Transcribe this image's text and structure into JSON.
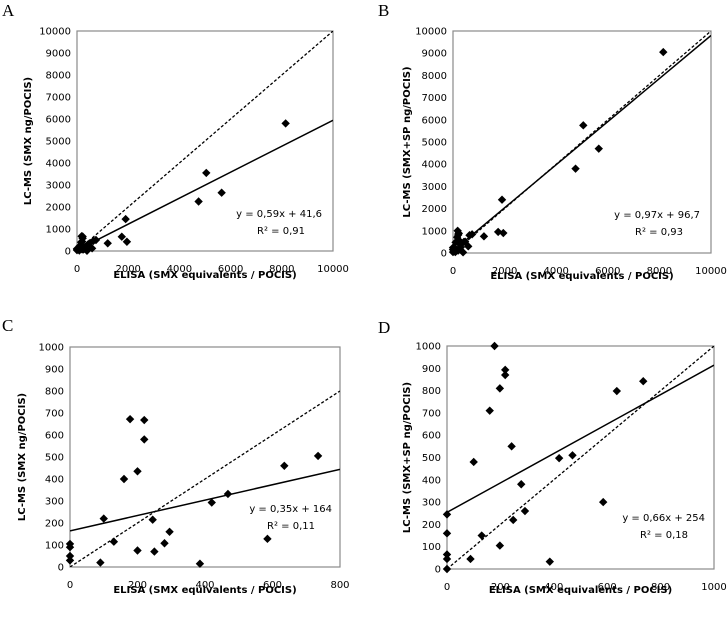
{
  "chart_data": [
    {
      "panel": "A",
      "type": "scatter",
      "xlabel": "ELISA (SMX equivalents / POCIS)",
      "ylabel": "LC-MS (SMX ng/POCIS)",
      "xlim": [
        0,
        10000
      ],
      "ylim": [
        0,
        10000
      ],
      "xticks": [
        "0",
        "2000",
        "4000",
        "6000",
        "8000",
        "10000"
      ],
      "yticks": [
        "0",
        "1000",
        "2000",
        "3000",
        "4000",
        "5000",
        "6000",
        "7000",
        "8000",
        "9000",
        "10000"
      ],
      "xtick_values": [
        0,
        2000,
        4000,
        6000,
        8000,
        10000
      ],
      "ytick_values": [
        0,
        1000,
        2000,
        3000,
        4000,
        5000,
        6000,
        7000,
        8000,
        9000,
        10000
      ],
      "grid": false,
      "points": [
        [
          0,
          40
        ],
        [
          0,
          90
        ],
        [
          0,
          100
        ],
        [
          90,
          20
        ],
        [
          100,
          220
        ],
        [
          130,
          110
        ],
        [
          160,
          400
        ],
        [
          180,
          670
        ],
        [
          200,
          70
        ],
        [
          200,
          430
        ],
        [
          220,
          580
        ],
        [
          220,
          660
        ],
        [
          250,
          70
        ],
        [
          250,
          210
        ],
        [
          280,
          100
        ],
        [
          300,
          160
        ],
        [
          390,
          10
        ],
        [
          420,
          290
        ],
        [
          470,
          330
        ],
        [
          590,
          120
        ],
        [
          640,
          460
        ],
        [
          740,
          500
        ],
        [
          1200,
          350
        ],
        [
          1750,
          650
        ],
        [
          1900,
          1450
        ],
        [
          1950,
          420
        ],
        [
          4750,
          2250
        ],
        [
          5050,
          3550
        ],
        [
          5650,
          2650
        ],
        [
          8150,
          5800
        ]
      ],
      "regression": {
        "slope": 0.59,
        "intercept": 41.6,
        "style": "solid"
      },
      "identity_line": {
        "slope": 1,
        "intercept": 0,
        "style": "dashed"
      },
      "equation": "y = 0,59x + 41,6",
      "r2": "R² = 0,91"
    },
    {
      "panel": "B",
      "type": "scatter",
      "xlabel": "ELISA (SMX equivalents / POCIS)",
      "ylabel": "LC-MS (SMX+SP ng/POCIS)",
      "xlim": [
        0,
        10000
      ],
      "ylim": [
        0,
        10000
      ],
      "xticks": [
        "0",
        "2000",
        "4000",
        "6000",
        "8000",
        "10000"
      ],
      "yticks": [
        "0",
        "1000",
        "2000",
        "3000",
        "4000",
        "5000",
        "6000",
        "7000",
        "8000",
        "9000",
        "10000"
      ],
      "xtick_values": [
        0,
        2000,
        4000,
        6000,
        8000,
        10000
      ],
      "ytick_values": [
        0,
        1000,
        2000,
        3000,
        4000,
        5000,
        6000,
        7000,
        8000,
        9000,
        10000
      ],
      "grid": false,
      "points": [
        [
          0,
          40
        ],
        [
          0,
          150
        ],
        [
          0,
          240
        ],
        [
          90,
          40
        ],
        [
          100,
          480
        ],
        [
          130,
          150
        ],
        [
          160,
          710
        ],
        [
          180,
          1000
        ],
        [
          200,
          110
        ],
        [
          200,
          810
        ],
        [
          220,
          870
        ],
        [
          220,
          890
        ],
        [
          250,
          220
        ],
        [
          250,
          550
        ],
        [
          280,
          380
        ],
        [
          300,
          260
        ],
        [
          390,
          30
        ],
        [
          420,
          500
        ],
        [
          470,
          510
        ],
        [
          590,
          300
        ],
        [
          640,
          800
        ],
        [
          740,
          840
        ],
        [
          1200,
          750
        ],
        [
          1750,
          950
        ],
        [
          1900,
          2400
        ],
        [
          1950,
          900
        ],
        [
          4750,
          3800
        ],
        [
          5050,
          5750
        ],
        [
          5650,
          4700
        ],
        [
          8150,
          9050
        ]
      ],
      "regression": {
        "slope": 0.97,
        "intercept": 96.7,
        "style": "solid"
      },
      "identity_line": {
        "slope": 1,
        "intercept": 0,
        "style": "dashed"
      },
      "equation": "y = 0,97x + 96,7",
      "r2": "R² = 0,93"
    },
    {
      "panel": "C",
      "type": "scatter",
      "xlabel": "ELISA (SMX equivalents / POCIS)",
      "ylabel": "LC-MS (SMX  ng/POCIS)",
      "xlim": [
        0,
        800
      ],
      "ylim": [
        0,
        1000
      ],
      "xticks": [
        "0",
        "200",
        "400",
        "600",
        "800"
      ],
      "yticks": [
        "0",
        "100",
        "200",
        "300",
        "400",
        "500",
        "600",
        "700",
        "800",
        "900",
        "1000"
      ],
      "xtick_values": [
        0,
        200,
        400,
        600,
        800
      ],
      "ytick_values": [
        0,
        100,
        200,
        300,
        400,
        500,
        600,
        700,
        800,
        900,
        1000
      ],
      "grid": false,
      "points": [
        [
          0,
          30
        ],
        [
          0,
          50
        ],
        [
          0,
          90
        ],
        [
          0,
          105
        ],
        [
          90,
          20
        ],
        [
          100,
          220
        ],
        [
          130,
          115
        ],
        [
          160,
          400
        ],
        [
          178,
          672
        ],
        [
          200,
          75
        ],
        [
          200,
          435
        ],
        [
          220,
          580
        ],
        [
          220,
          668
        ],
        [
          245,
          215
        ],
        [
          250,
          70
        ],
        [
          280,
          108
        ],
        [
          295,
          160
        ],
        [
          385,
          15
        ],
        [
          420,
          293
        ],
        [
          468,
          332
        ],
        [
          585,
          128
        ],
        [
          635,
          460
        ],
        [
          735,
          505
        ]
      ],
      "regression": {
        "slope": 0.35,
        "intercept": 164,
        "style": "solid"
      },
      "identity_line": {
        "slope": 1,
        "intercept": 0,
        "style": "dashed"
      },
      "equation": "y = 0,35x + 164",
      "r2": "R² = 0,11"
    },
    {
      "panel": "D",
      "type": "scatter",
      "xlabel": "ELISA (SMX equivalents / POCIS)",
      "ylabel": "LC-MS (SMX+SP  ng/POCIS)",
      "xlim": [
        0,
        1000
      ],
      "ylim": [
        0,
        1000
      ],
      "xticks": [
        "0",
        "200",
        "400",
        "600",
        "800",
        "1000"
      ],
      "yticks": [
        "0",
        "100",
        "200",
        "300",
        "400",
        "500",
        "600",
        "700",
        "800",
        "900",
        "1000"
      ],
      "xtick_values": [
        0,
        200,
        400,
        600,
        800,
        1000
      ],
      "ytick_values": [
        0,
        100,
        200,
        300,
        400,
        500,
        600,
        700,
        800,
        900,
        1000
      ],
      "grid": false,
      "points": [
        [
          0,
          0
        ],
        [
          0,
          45
        ],
        [
          0,
          65
        ],
        [
          0,
          160
        ],
        [
          0,
          245
        ],
        [
          88,
          45
        ],
        [
          100,
          480
        ],
        [
          130,
          150
        ],
        [
          160,
          710
        ],
        [
          178,
          1000
        ],
        [
          198,
          105
        ],
        [
          198,
          810
        ],
        [
          218,
          870
        ],
        [
          218,
          893
        ],
        [
          242,
          550
        ],
        [
          248,
          220
        ],
        [
          278,
          380
        ],
        [
          292,
          260
        ],
        [
          385,
          33
        ],
        [
          420,
          497
        ],
        [
          470,
          510
        ],
        [
          585,
          300
        ],
        [
          636,
          798
        ],
        [
          735,
          842
        ]
      ],
      "regression": {
        "slope": 0.66,
        "intercept": 254,
        "style": "solid"
      },
      "identity_line": {
        "slope": 1,
        "intercept": 0,
        "style": "dashed"
      },
      "equation": "y = 0,66x + 254",
      "r2": "R² = 0,18"
    }
  ]
}
